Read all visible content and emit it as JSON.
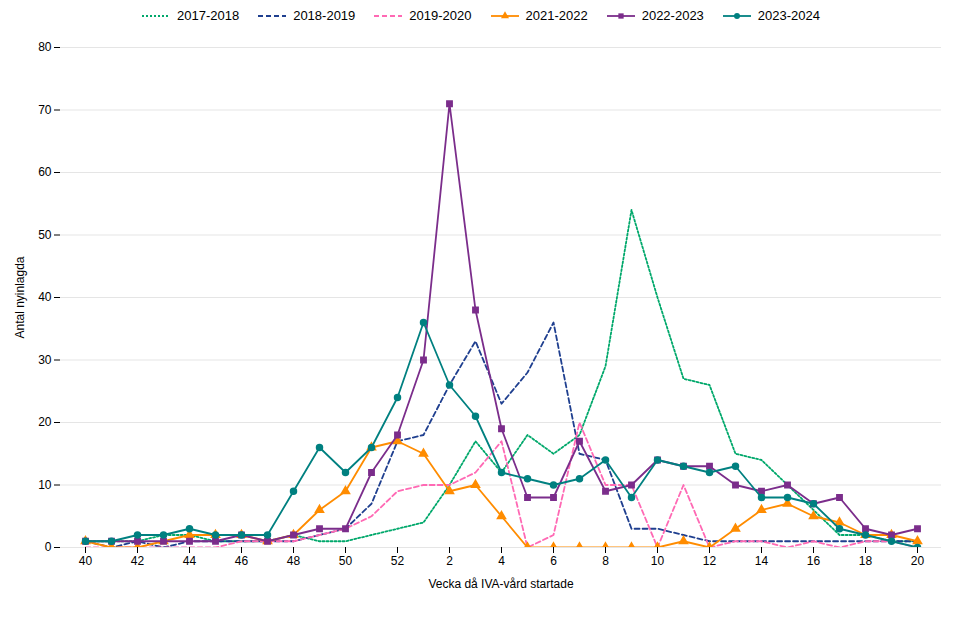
{
  "chart_data": {
    "type": "line",
    "ylabel": "Antal nyinlagda",
    "xlabel": "Vecka då IVA-vård startade",
    "categories": [
      "40",
      null,
      "42",
      null,
      "44",
      null,
      "46",
      null,
      "48",
      null,
      "50",
      null,
      "52",
      null,
      "2",
      null,
      "4",
      null,
      "6",
      null,
      "8",
      null,
      "10",
      null,
      "12",
      null,
      "14",
      null,
      "16",
      null,
      "18",
      null,
      "20"
    ],
    "ylim": [
      0,
      80
    ],
    "yticks": [
      0,
      10,
      20,
      30,
      40,
      50,
      60,
      70,
      80
    ],
    "grid": true,
    "legend": "top",
    "series": [
      {
        "name": "2017-2018",
        "color": "#00A86B",
        "line_style": "dotted",
        "values": [
          1,
          1,
          1,
          2,
          2,
          1,
          1,
          1,
          2,
          1,
          1,
          2,
          3,
          4,
          10,
          17,
          12,
          18,
          15,
          18,
          29,
          54,
          40,
          27,
          26,
          15,
          14,
          10,
          6,
          2,
          2,
          1,
          1
        ]
      },
      {
        "name": "2018-2019",
        "color": "#1F3F8F",
        "line_style": "dashed",
        "values": [
          1,
          0,
          1,
          0,
          1,
          1,
          1,
          1,
          1,
          2,
          3,
          7,
          17,
          18,
          26,
          33,
          23,
          28,
          36,
          15,
          14,
          3,
          3,
          2,
          1,
          1,
          1,
          1,
          1,
          1,
          1,
          1,
          1
        ]
      },
      {
        "name": "2019-2020",
        "color": "#FF69B4",
        "line_style": "dashed",
        "values": [
          0,
          0,
          0,
          0,
          0,
          0,
          1,
          1,
          1,
          2,
          3,
          5,
          9,
          10,
          10,
          12,
          17,
          0,
          2,
          20,
          10,
          10,
          0,
          10,
          0,
          1,
          1,
          0,
          1,
          0,
          1,
          1,
          0
        ]
      },
      {
        "name": "2021-2022",
        "color": "#FF8C00",
        "line_style": "solid",
        "marker": "triangle",
        "values": [
          1,
          0,
          0,
          1,
          2,
          2,
          2,
          1,
          2,
          6,
          9,
          16,
          17,
          15,
          9,
          10,
          5,
          0,
          0,
          0,
          0,
          0,
          0,
          1,
          0,
          3,
          6,
          7,
          5,
          4,
          2,
          2,
          1
        ]
      },
      {
        "name": "2022-2023",
        "color": "#7B2D8B",
        "line_style": "solid",
        "marker": "square",
        "values": [
          1,
          1,
          1,
          1,
          1,
          1,
          2,
          1,
          2,
          3,
          3,
          12,
          18,
          30,
          71,
          38,
          19,
          8,
          8,
          17,
          9,
          10,
          14,
          13,
          13,
          10,
          9,
          10,
          7,
          8,
          3,
          2,
          3
        ]
      },
      {
        "name": "2023-2024",
        "color": "#008080",
        "line_style": "solid",
        "marker": "circle",
        "values": [
          1,
          1,
          2,
          2,
          3,
          2,
          2,
          2,
          9,
          16,
          12,
          16,
          24,
          36,
          26,
          21,
          12,
          11,
          10,
          11,
          14,
          8,
          14,
          13,
          12,
          13,
          8,
          8,
          7,
          3,
          2,
          1,
          0
        ]
      }
    ]
  }
}
